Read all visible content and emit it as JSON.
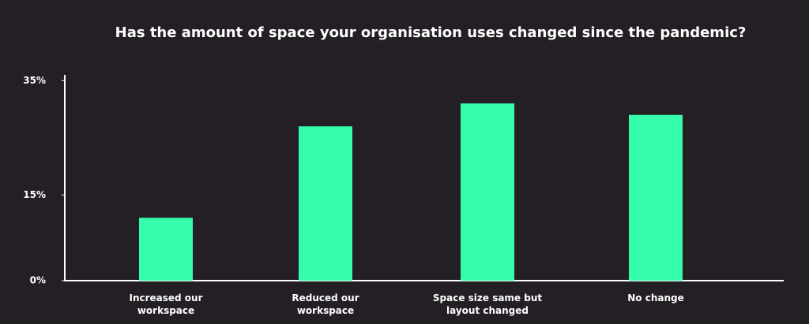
{
  "chart_data": {
    "type": "bar",
    "title": "Has the amount of space your organisation uses changed since the pandemic?",
    "categories": [
      "Increased our workspace",
      "Reduced our workspace",
      "Space size same but layout changed",
      "No change"
    ],
    "values": [
      11,
      27,
      31,
      29
    ],
    "color": "#35fdab",
    "ylim": [
      0,
      36
    ],
    "yticks": [
      {
        "value": 0,
        "label": "0%"
      },
      {
        "value": 15,
        "label": "15%"
      },
      {
        "value": 35,
        "label": "35%"
      }
    ]
  }
}
